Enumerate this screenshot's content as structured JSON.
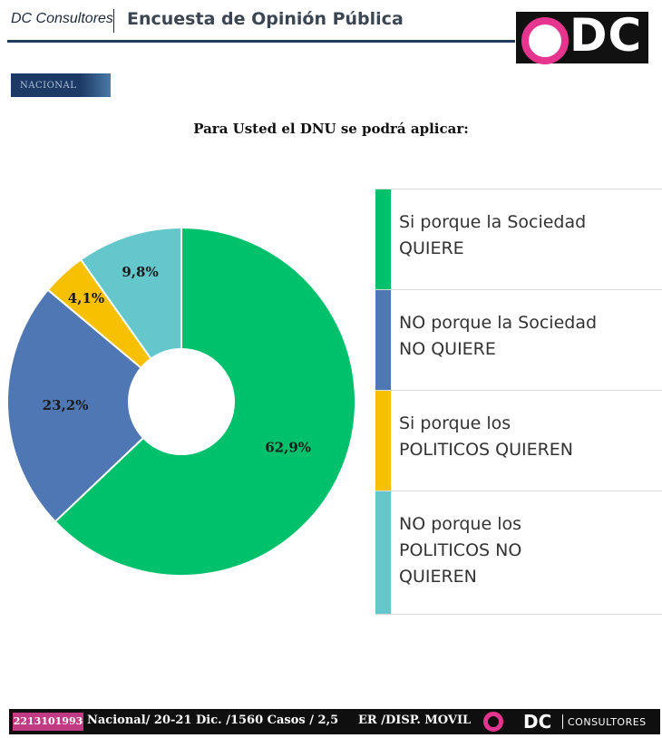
{
  "header": {
    "brand": "DC Consultores",
    "title": "Encuesta de Opinión Pública",
    "logo_text": "DC"
  },
  "tag": "NACIONAL",
  "chart_data": {
    "type": "pie",
    "title": "Para Usted el DNU se podrá aplicar:",
    "style": "donut",
    "legend_position": "right",
    "categories": [
      "Si porque la Sociedad QUIERE",
      "NO porque la Sociedad NO QUIERE",
      "Si porque los POLITICOS QUIEREN",
      "NO porque los POLITICOS NO QUIEREN"
    ],
    "values": [
      62.9,
      23.2,
      4.1,
      9.8
    ],
    "value_labels": [
      "62,9%",
      "23,2%",
      "4,1%",
      "9,8%"
    ],
    "colors": [
      "#00c16b",
      "#4f77b4",
      "#f7c000",
      "#63c7cc"
    ]
  },
  "legend": [
    {
      "label": "Si porque la Sociedad\nQUIERE",
      "color": "#00c16b"
    },
    {
      "label": "NO porque la Sociedad\nNO QUIERE",
      "color": "#4f77b4"
    },
    {
      "label": "Si porque los\nPOLITICOS QUIEREN",
      "color": "#f7c000"
    },
    {
      "label": "NO porque los\nPOLITICOS NO\nQUIEREN",
      "color": "#63c7cc"
    }
  ],
  "footer": {
    "phone": "2213101993",
    "info": "Nacional/ 20-21 Dic. /1560 Casos / 2,5",
    "info2": "ER /DISP. MOVIL",
    "logo_text": "DC",
    "consultores": "CONSULTORES"
  }
}
